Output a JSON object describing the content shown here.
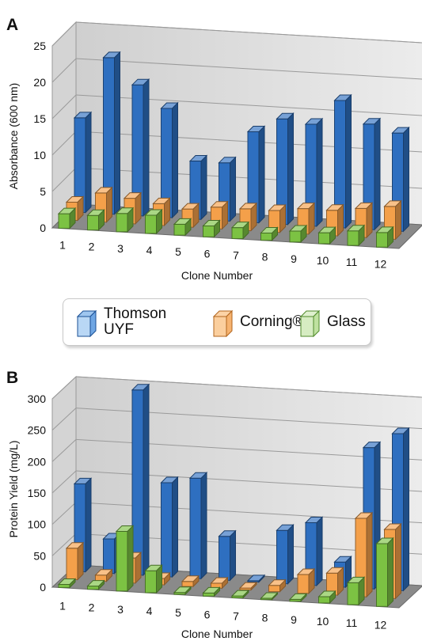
{
  "panels": {
    "a": {
      "letter": "A"
    },
    "b": {
      "letter": "B"
    }
  },
  "legend": {
    "thomson_label": "Thomson UYF",
    "corning_label": "Corning®",
    "glass_label": "Glass"
  },
  "colors": {
    "thomson": "#2e6fc0",
    "corning": "#f4a04a",
    "glass": "#7cc243",
    "floor": "#8a8a8a",
    "wall": "#e2e2e2"
  },
  "chart_data": [
    {
      "type": "bar",
      "panel": "A",
      "title": "",
      "xlabel": "Clone Number",
      "ylabel": "Absorbance (600 nm)",
      "ylim": [
        0,
        25
      ],
      "yticks": [
        0,
        5,
        10,
        15,
        20,
        25
      ],
      "categories": [
        "1",
        "2",
        "3",
        "4",
        "5",
        "6",
        "7",
        "8",
        "9",
        "10",
        "11",
        "12"
      ],
      "grid": true,
      "series": [
        {
          "name": "Thomson UYF",
          "values": [
            13,
            21.5,
            18,
            15,
            8,
            8,
            12.5,
            14.5,
            14,
            17.5,
            14.5,
            13.5
          ]
        },
        {
          "name": "Corning®",
          "values": [
            2.5,
            4,
            3.5,
            3,
            2.5,
            3,
            3,
            3,
            3.5,
            3.5,
            4,
            4.5
          ]
        },
        {
          "name": "Glass",
          "values": [
            2,
            2,
            2.5,
            2.5,
            1.5,
            1.5,
            1.5,
            1,
            1.5,
            1.5,
            2,
            2
          ]
        }
      ]
    },
    {
      "type": "bar",
      "panel": "B",
      "title": "",
      "xlabel": "Clone Number",
      "ylabel": "Protein Yield (mg/L)",
      "ylim": [
        0,
        300
      ],
      "yticks": [
        0,
        50,
        100,
        150,
        200,
        250,
        300
      ],
      "categories": [
        "1",
        "2",
        "3",
        "4",
        "5",
        "6",
        "7",
        "8",
        "9",
        "10",
        "11",
        "12"
      ],
      "grid": true,
      "series": [
        {
          "name": "Thomson UYF",
          "values": [
            140,
            55,
            295,
            150,
            160,
            70,
            2,
            85,
            100,
            40,
            225,
            250
          ]
        },
        {
          "name": "Corning®",
          "values": [
            50,
            10,
            40,
            10,
            8,
            8,
            3,
            10,
            30,
            35,
            125,
            110
          ]
        },
        {
          "name": "Glass",
          "values": [
            5,
            5,
            95,
            35,
            3,
            5,
            3,
            2,
            3,
            10,
            35,
            100
          ]
        }
      ]
    }
  ]
}
